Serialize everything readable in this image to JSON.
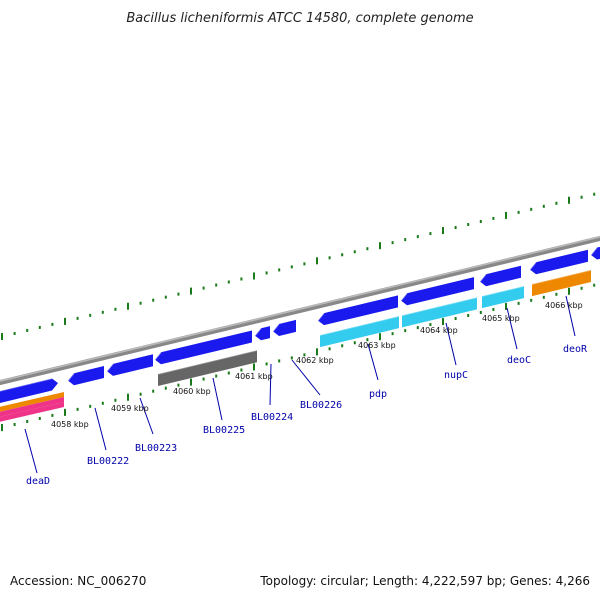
{
  "title": "Bacillus licheniformis ATCC 14580, complete genome",
  "footer": {
    "accession": "Accession: NC_006270",
    "summary": "Topology: circular; Length: 4,222,597 bp; Genes: 4,266"
  },
  "colors": {
    "backbone": "#888888",
    "gene_fwd": "#1a1aee",
    "gene_rev_cyan": "#33ccee",
    "gene_gray": "#666666",
    "gene_orange": "#ee8800",
    "gene_pink": "#ee3388",
    "tick": "#1a7a1a",
    "label": "#0000aa"
  },
  "kbp_labels": [
    "4058 kbp",
    "4059 kbp",
    "4060 kbp",
    "4061 kbp",
    "4062 kbp",
    "4063 kbp",
    "4064 kbp",
    "4065 kbp",
    "4066 kbp"
  ],
  "genes": [
    {
      "label": "deaD"
    },
    {
      "label": "BL00222"
    },
    {
      "label": "BL00223"
    },
    {
      "label": "BL00225"
    },
    {
      "label": "BL00224"
    },
    {
      "label": "BL00226"
    },
    {
      "label": "pdp"
    },
    {
      "label": "nupC"
    },
    {
      "label": "deoC"
    },
    {
      "label": "deoR"
    }
  ]
}
